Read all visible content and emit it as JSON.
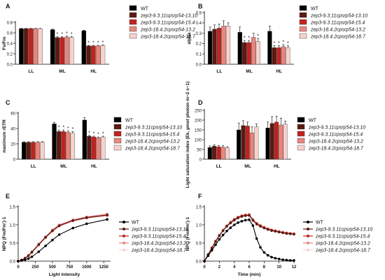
{
  "series_names": [
    "WT",
    "zep3-9.3.11cpsrp54-13.10",
    "zep3-9.3.11cpsrp54-15.4",
    "zep3-18.4.2cpsrp54-13.2",
    "zep3-18.4.2cpsrp54-18.7"
  ],
  "colors": [
    "#000000",
    "#5c1a12",
    "#c0231f",
    "#e8867d",
    "#f7d2cd"
  ],
  "chart_data": [
    {
      "id": "A",
      "type": "bar",
      "panel_label": "A",
      "ylabel": "Fv/Fm",
      "ylim": [
        0,
        0.8
      ],
      "yticks": [
        0,
        0.2,
        0.4,
        0.6,
        0.8
      ],
      "ytick_labels": [
        "0.0",
        "0.2",
        "0.4",
        "0.6",
        "0.8"
      ],
      "categories": [
        "LL",
        "ML",
        "HL"
      ],
      "series": [
        {
          "name": "WT",
          "values": [
            0.68,
            0.66,
            0.64
          ],
          "errors": [
            0.005,
            0.01,
            0.01
          ],
          "sig": [
            false,
            false,
            false
          ]
        },
        {
          "name": "zep3-9.3.11cpsrp54-13.10",
          "values": [
            0.68,
            0.51,
            0.35
          ],
          "errors": [
            0.005,
            0.02,
            0.01
          ],
          "sig": [
            false,
            true,
            true
          ]
        },
        {
          "name": "zep3-9.3.11cpsrp54-15.4",
          "values": [
            0.68,
            0.51,
            0.35
          ],
          "errors": [
            0.005,
            0.02,
            0.01
          ],
          "sig": [
            false,
            true,
            true
          ]
        },
        {
          "name": "zep3-18.4.2cpsrp54-13.2",
          "values": [
            0.68,
            0.52,
            0.35
          ],
          "errors": [
            0.005,
            0.02,
            0.01
          ],
          "sig": [
            false,
            true,
            true
          ]
        },
        {
          "name": "zep3-18.4.2cpsrp54-18.7",
          "values": [
            0.68,
            0.51,
            0.36
          ],
          "errors": [
            0.005,
            0.02,
            0.01
          ],
          "sig": [
            false,
            true,
            true
          ]
        }
      ]
    },
    {
      "id": "B",
      "type": "bar",
      "panel_label": "B",
      "ylabel": "alpha",
      "ylim": [
        0,
        0.5
      ],
      "yticks": [
        0,
        0.1,
        0.2,
        0.3,
        0.4,
        0.5
      ],
      "ytick_labels": [
        "0.0",
        "0.1",
        "0.2",
        "0.3",
        "0.4",
        "0.5"
      ],
      "categories": [
        "LL",
        "ML",
        "HL"
      ],
      "series": [
        {
          "name": "WT",
          "values": [
            0.32,
            0.31,
            0.32
          ],
          "errors": [
            0.04,
            0.05,
            0.05
          ],
          "sig": [
            false,
            false,
            false
          ]
        },
        {
          "name": "zep3-9.3.11cpsrp54-13.10",
          "values": [
            0.34,
            0.21,
            0.16
          ],
          "errors": [
            0.04,
            0.02,
            0.02
          ],
          "sig": [
            false,
            true,
            true
          ]
        },
        {
          "name": "zep3-9.3.11cpsrp54-15.4",
          "values": [
            0.35,
            0.21,
            0.16
          ],
          "errors": [
            0.04,
            0.02,
            0.02
          ],
          "sig": [
            false,
            true,
            true
          ]
        },
        {
          "name": "zep3-18.4.2cpsrp54-13.2",
          "values": [
            0.37,
            0.26,
            0.17
          ],
          "errors": [
            0.05,
            0.04,
            0.02
          ],
          "sig": [
            false,
            false,
            true
          ]
        },
        {
          "name": "zep3-18.4.2cpsrp54-18.7",
          "values": [
            0.37,
            0.22,
            0.16
          ],
          "errors": [
            0.03,
            0.03,
            0.02
          ],
          "sig": [
            false,
            true,
            true
          ]
        }
      ]
    },
    {
      "id": "C",
      "type": "bar",
      "panel_label": "C",
      "ylabel": "maximum rETR",
      "ylim": [
        0,
        60
      ],
      "yticks": [
        0,
        20,
        40,
        60
      ],
      "ytick_labels": [
        "0",
        "20",
        "40",
        "60"
      ],
      "categories": [
        "LL",
        "ML",
        "HL"
      ],
      "series": [
        {
          "name": "WT",
          "values": [
            22,
            46,
            51
          ],
          "errors": [
            0.8,
            2,
            3
          ],
          "sig": [
            false,
            false,
            false
          ]
        },
        {
          "name": "zep3-9.3.11cpsrp54-13.10",
          "values": [
            22,
            36,
            30
          ],
          "errors": [
            0.8,
            2,
            1
          ],
          "sig": [
            false,
            true,
            true
          ]
        },
        {
          "name": "zep3-9.3.11cpsrp54-15.4",
          "values": [
            22,
            36,
            29
          ],
          "errors": [
            0.8,
            2,
            1
          ],
          "sig": [
            false,
            true,
            true
          ]
        },
        {
          "name": "zep3-18.4.2cpsrp54-13.2",
          "values": [
            22,
            35,
            28
          ],
          "errors": [
            0.8,
            2,
            1
          ],
          "sig": [
            false,
            true,
            true
          ]
        },
        {
          "name": "zep3-18.4.2cpsrp54-18.7",
          "values": [
            22,
            34,
            29
          ],
          "errors": [
            0.8,
            2,
            1
          ],
          "sig": [
            false,
            true,
            true
          ]
        }
      ]
    },
    {
      "id": "D",
      "type": "bar",
      "panel_label": "D",
      "ylabel": "Light saturation index (Ek, µmol photon m−2 s−1)",
      "ylim": [
        0,
        250
      ],
      "yticks": [
        0,
        50,
        100,
        150,
        200,
        250
      ],
      "ytick_labels": [
        "0",
        "50",
        "100",
        "150",
        "200",
        "250"
      ],
      "categories": [
        "LL",
        "ML",
        "HL"
      ],
      "series": [
        {
          "name": "WT",
          "values": [
            60,
            150,
            160
          ],
          "errors": [
            8,
            35,
            30
          ],
          "sig": [
            false,
            false,
            false
          ]
        },
        {
          "name": "zep3-9.3.11cpsrp54-13.10",
          "values": [
            67,
            172,
            183
          ],
          "errors": [
            7,
            25,
            35
          ],
          "sig": [
            false,
            false,
            false
          ]
        },
        {
          "name": "zep3-9.3.11cpsrp54-15.4",
          "values": [
            63,
            170,
            190
          ],
          "errors": [
            7,
            20,
            30
          ],
          "sig": [
            false,
            false,
            false
          ]
        },
        {
          "name": "zep3-18.4.2cpsrp54-13.2",
          "values": [
            62,
            135,
            175
          ],
          "errors": [
            7,
            30,
            35
          ],
          "sig": [
            false,
            false,
            false
          ]
        },
        {
          "name": "zep3-18.4.2cpsrp54-18.7",
          "values": [
            58,
            165,
            180
          ],
          "errors": [
            6,
            15,
            15
          ],
          "sig": [
            false,
            false,
            false
          ]
        }
      ]
    },
    {
      "id": "E",
      "type": "line",
      "panel_label": "E",
      "ylabel": "NPQ (Fm/Fm')-1",
      "xlabel": "Light intensity",
      "xlim": [
        0,
        1350
      ],
      "ylim": [
        0,
        1.5
      ],
      "xticks": [
        0,
        250,
        500,
        750,
        1000,
        1250
      ],
      "yticks": [
        0,
        0.5,
        1.0,
        1.5
      ],
      "xtick_labels": [
        "0",
        "250",
        "500",
        "750",
        "1000",
        "1250"
      ],
      "ytick_labels": [
        "0.0",
        "0.5",
        "1.0",
        "1.5"
      ],
      "x": [
        0,
        50,
        100,
        150,
        200,
        300,
        400,
        500,
        600,
        800,
        1000,
        1300
      ],
      "series": [
        {
          "name": "WT",
          "values": [
            0.0,
            0.02,
            0.04,
            0.07,
            0.12,
            0.26,
            0.42,
            0.58,
            0.73,
            0.91,
            1.03,
            1.15
          ]
        },
        {
          "name": "zep3-9.3.11cpsrp54-13.10",
          "values": [
            0.0,
            0.03,
            0.08,
            0.15,
            0.25,
            0.46,
            0.66,
            0.84,
            0.98,
            1.12,
            1.2,
            1.27
          ]
        },
        {
          "name": "zep3-9.3.11cpsrp54-15.4",
          "values": [
            0.0,
            0.03,
            0.08,
            0.15,
            0.24,
            0.45,
            0.65,
            0.83,
            0.97,
            1.11,
            1.19,
            1.26
          ]
        },
        {
          "name": "zep3-18.4.2cpsrp54-13.2",
          "values": [
            0.0,
            0.03,
            0.09,
            0.16,
            0.26,
            0.47,
            0.67,
            0.86,
            1.0,
            1.14,
            1.22,
            1.3
          ]
        },
        {
          "name": "zep3-18.4.2cpsrp54-18.7",
          "values": [
            0.0,
            0.03,
            0.08,
            0.15,
            0.25,
            0.45,
            0.66,
            0.84,
            0.99,
            1.13,
            1.21,
            1.29
          ]
        }
      ]
    },
    {
      "id": "F",
      "type": "line",
      "panel_label": "F",
      "ylabel": "NPQ (Fm/Fm')-1",
      "xlabel": "Time (min)",
      "xlim": [
        0,
        12
      ],
      "ylim": [
        0,
        1.5
      ],
      "xticks": [
        0,
        2,
        4,
        6,
        8,
        10,
        12
      ],
      "yticks": [
        0,
        0.5,
        1.0,
        1.5
      ],
      "xtick_labels": [
        "0",
        "2",
        "4",
        "6",
        "8",
        "10",
        "12"
      ],
      "ytick_labels": [
        "0.0",
        "0.5",
        "1.0",
        "1.5"
      ],
      "x": [
        0,
        0.5,
        1,
        1.5,
        2,
        2.5,
        3,
        3.5,
        4,
        4.5,
        5,
        5.5,
        6,
        6.5,
        7,
        7.5,
        8,
        8.5,
        9,
        9.5,
        10,
        10.5,
        11,
        11.5,
        12
      ],
      "series": [
        {
          "name": "WT",
          "values": [
            0.0,
            0.15,
            0.3,
            0.45,
            0.6,
            0.72,
            0.83,
            0.92,
            1.0,
            1.06,
            1.1,
            1.13,
            1.14,
            0.98,
            0.62,
            0.38,
            0.24,
            0.16,
            0.11,
            0.08,
            0.06,
            0.04,
            0.03,
            0.02,
            0.02
          ]
        },
        {
          "name": "zep3-9.3.11cpsrp54-13.10",
          "values": [
            0.0,
            0.18,
            0.36,
            0.54,
            0.7,
            0.84,
            0.96,
            1.05,
            1.13,
            1.19,
            1.23,
            1.25,
            1.26,
            1.12,
            1.02,
            0.96,
            0.91,
            0.87,
            0.84,
            0.82,
            0.8,
            0.78,
            0.76,
            0.75,
            0.74
          ]
        },
        {
          "name": "zep3-9.3.11cpsrp54-15.4",
          "values": [
            0.0,
            0.18,
            0.36,
            0.54,
            0.7,
            0.84,
            0.96,
            1.06,
            1.14,
            1.2,
            1.24,
            1.26,
            1.27,
            1.13,
            1.03,
            0.97,
            0.92,
            0.88,
            0.85,
            0.83,
            0.81,
            0.79,
            0.77,
            0.76,
            0.75
          ]
        },
        {
          "name": "zep3-18.4.2cpsrp54-13.2",
          "values": [
            0.0,
            0.19,
            0.38,
            0.56,
            0.72,
            0.86,
            0.98,
            1.08,
            1.16,
            1.22,
            1.26,
            1.28,
            1.29,
            1.15,
            1.05,
            0.99,
            0.94,
            0.9,
            0.87,
            0.84,
            0.82,
            0.8,
            0.78,
            0.77,
            0.76
          ]
        },
        {
          "name": "zep3-18.4.2cpsrp54-18.7",
          "values": [
            0.0,
            0.18,
            0.37,
            0.55,
            0.71,
            0.85,
            0.97,
            1.07,
            1.15,
            1.21,
            1.25,
            1.27,
            1.28,
            1.14,
            1.04,
            0.98,
            0.93,
            0.89,
            0.86,
            0.84,
            0.81,
            0.79,
            0.77,
            0.76,
            0.75
          ]
        }
      ]
    }
  ]
}
